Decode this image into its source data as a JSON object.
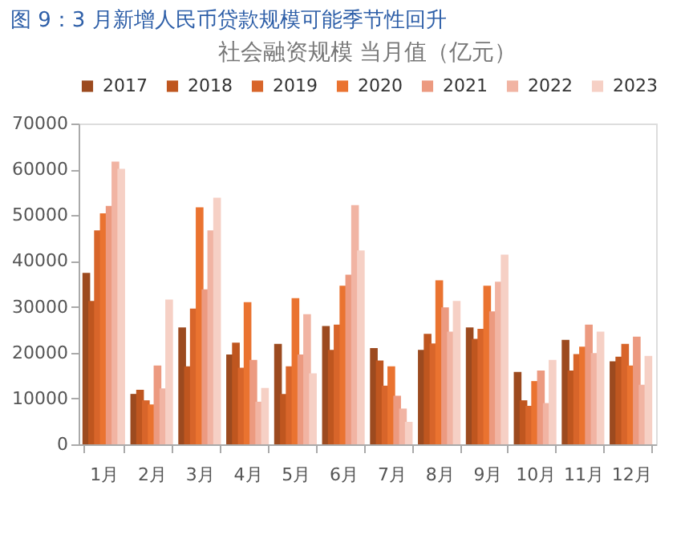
{
  "chart_data": {
    "type": "bar",
    "title": "图 9：3 月新增人民币贷款规模可能季节性回升",
    "subtitle": "社会融资规模 当月值（亿元）",
    "categories": [
      "1月",
      "2月",
      "3月",
      "4月",
      "5月",
      "6月",
      "7月",
      "8月",
      "9月",
      "10月",
      "11月",
      "12月"
    ],
    "series": [
      {
        "name": "2017",
        "color": "#9c4a1f",
        "values": [
          37400,
          11000,
          25500,
          19600,
          21900,
          25800,
          21000,
          20600,
          25500,
          15800,
          22800,
          18100
        ]
      },
      {
        "name": "2018",
        "color": "#bf561f",
        "values": [
          31300,
          11900,
          17000,
          22200,
          11000,
          20600,
          18300,
          24100,
          23000,
          9600,
          16100,
          19100
        ]
      },
      {
        "name": "2019",
        "color": "#d8652a",
        "values": [
          46700,
          9600,
          29600,
          16700,
          17000,
          26100,
          12800,
          22000,
          25200,
          8400,
          19700,
          21900
        ]
      },
      {
        "name": "2020",
        "color": "#ea7330",
        "values": [
          50400,
          8700,
          51700,
          31000,
          31900,
          34600,
          17000,
          35800,
          34600,
          13800,
          21300,
          17200
        ]
      },
      {
        "name": "2021",
        "color": "#ec9a80",
        "values": [
          52000,
          17200,
          33800,
          18400,
          19600,
          37000,
          10600,
          29900,
          29000,
          16100,
          26100,
          23500
        ]
      },
      {
        "name": "2022",
        "color": "#f1b4a3",
        "values": [
          61700,
          12200,
          46700,
          9300,
          28400,
          52200,
          7800,
          24600,
          35500,
          9000,
          19900,
          13000
        ]
      },
      {
        "name": "2023",
        "color": "#f6d0c5",
        "values": [
          60100,
          31600,
          53800,
          12300,
          15500,
          42300,
          4900,
          31300,
          41400,
          18400,
          24600,
          19300
        ]
      }
    ],
    "ylim": [
      0,
      70000
    ],
    "yticks": [
      0,
      10000,
      20000,
      30000,
      40000,
      50000,
      60000,
      70000
    ],
    "grid": false,
    "legend": "top"
  }
}
